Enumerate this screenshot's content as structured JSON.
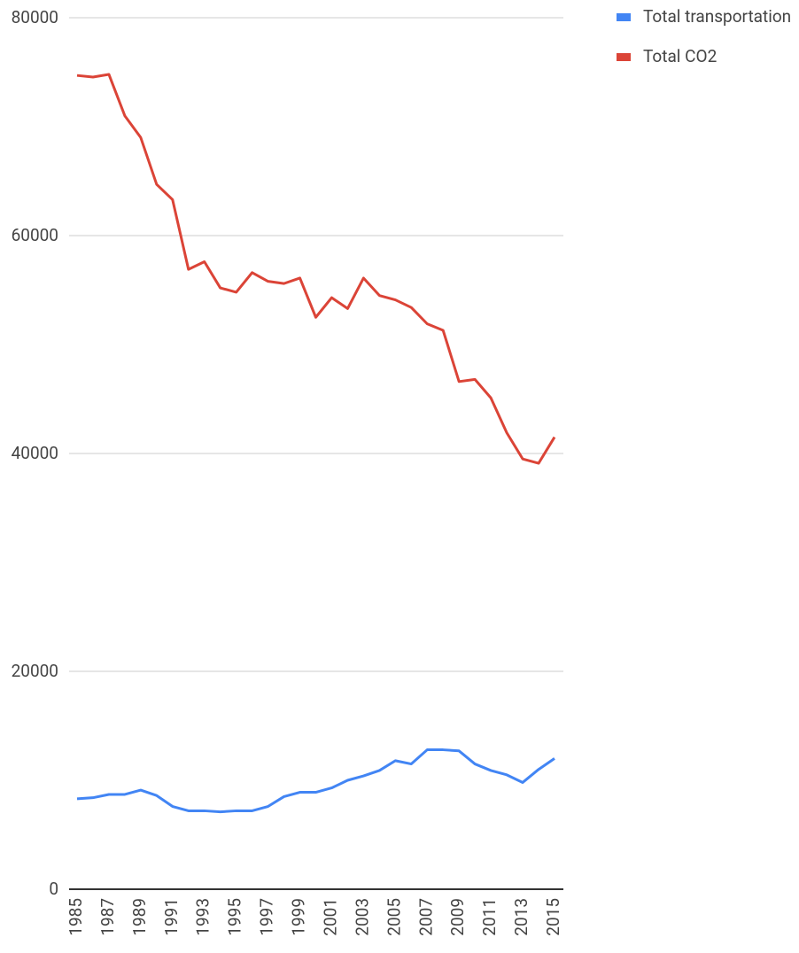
{
  "chart_data": {
    "type": "line",
    "x": [
      1985,
      1986,
      1987,
      1988,
      1989,
      1990,
      1991,
      1992,
      1993,
      1994,
      1995,
      1996,
      1997,
      1998,
      1999,
      2000,
      2001,
      2002,
      2003,
      2004,
      2005,
      2006,
      2007,
      2008,
      2009,
      2010,
      2011,
      2012,
      2013,
      2014,
      2015
    ],
    "series": [
      {
        "name": "Total transportation",
        "color": "#4285f4",
        "values": [
          8300,
          8400,
          8700,
          8700,
          9100,
          8600,
          7600,
          7200,
          7200,
          7100,
          7200,
          7200,
          7600,
          8500,
          8900,
          8900,
          9300,
          10000,
          10400,
          10900,
          11800,
          11500,
          12800,
          12800,
          12700,
          11500,
          10900,
          10500,
          9800,
          11000,
          12000
        ]
      },
      {
        "name": "Total CO2",
        "color": "#db4437",
        "values": [
          74700,
          74550,
          74800,
          71000,
          69000,
          64700,
          63300,
          56900,
          57600,
          55200,
          54800,
          56600,
          55800,
          55600,
          56100,
          52500,
          54300,
          53300,
          56100,
          54500,
          54100,
          53400,
          51900,
          51300,
          46600,
          46800,
          45100,
          41900,
          39500,
          39100,
          41500
        ]
      }
    ],
    "xlim": [
      1985,
      2015
    ],
    "xticks": [
      1985,
      1987,
      1989,
      1991,
      1993,
      1995,
      1997,
      1999,
      2001,
      2003,
      2005,
      2007,
      2009,
      2011,
      2013,
      2015
    ],
    "ylim": [
      0,
      80000
    ],
    "yticks": [
      0,
      20000,
      40000,
      60000,
      80000
    ],
    "grid": true,
    "legend": "right"
  }
}
